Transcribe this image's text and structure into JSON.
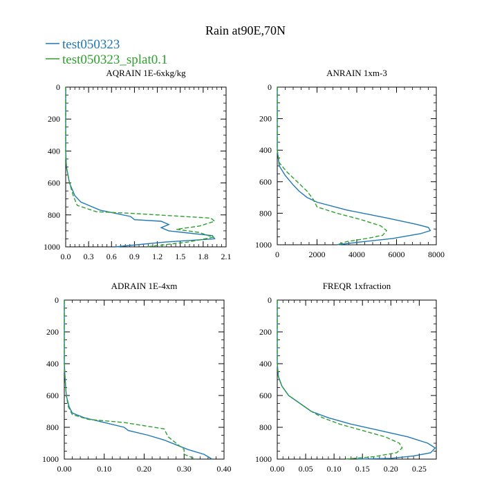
{
  "figure": {
    "title": "Rain at90E,70N",
    "legend": [
      {
        "label": "test050323",
        "color": "#1f77b4",
        "dash": "solid"
      },
      {
        "label": "test050323_splat0.1",
        "color": "#2ca02c",
        "dash": "dashed"
      }
    ]
  },
  "chart_data": [
    {
      "type": "line",
      "title": "AQRAIN  1E-6xkg/kg",
      "xlim": [
        0,
        2.1
      ],
      "ylim": [
        0,
        1000
      ],
      "yinvert": true,
      "xticks": [
        0.0,
        0.3,
        0.6,
        0.9,
        1.2,
        1.5,
        1.8,
        2.1
      ],
      "xtick_labels": [
        "0.0",
        "0.3",
        "0.6",
        "0.9",
        "1.2",
        "1.5",
        "1.8",
        "2.1"
      ],
      "yticks": [
        0,
        200,
        400,
        600,
        800,
        1000
      ],
      "ytick_labels": [
        "0",
        "200",
        "400",
        "600",
        "800",
        "1000"
      ],
      "series": [
        {
          "name": "test050323",
          "x": [
            0,
            0,
            0.01,
            0.05,
            0.12,
            0.2,
            0.45,
            0.85,
            0.9,
            1.25,
            1.35,
            1.25,
            1.35,
            1.92,
            1.95,
            1.3,
            0.65
          ],
          "y": [
            0,
            400,
            500,
            600,
            680,
            720,
            770,
            810,
            830,
            840,
            860,
            880,
            900,
            930,
            950,
            970,
            1000
          ]
        },
        {
          "name": "test050323_splat0.1",
          "x": [
            0,
            0,
            0.01,
            0.05,
            0.1,
            0.15,
            0.4,
            0.85,
            1.9,
            1.95,
            1.75,
            1.45,
            1.75,
            1.93,
            1.6,
            1.05
          ],
          "y": [
            0,
            400,
            500,
            600,
            680,
            740,
            780,
            790,
            820,
            840,
            870,
            890,
            910,
            940,
            970,
            1000
          ]
        }
      ]
    },
    {
      "type": "line",
      "title": "ANRAIN  1xm-3",
      "xlim": [
        0,
        8000
      ],
      "ylim": [
        0,
        1000
      ],
      "yinvert": true,
      "xticks": [
        0,
        2000,
        4000,
        6000,
        8000
      ],
      "xtick_labels": [
        "0",
        "2000",
        "4000",
        "6000",
        "8000"
      ],
      "yticks": [
        0,
        200,
        400,
        600,
        800,
        1000
      ],
      "ytick_labels": [
        "0",
        "200",
        "400",
        "600",
        "800",
        "1000"
      ],
      "series": [
        {
          "name": "test050323",
          "x": [
            0,
            0,
            100,
            400,
            800,
            1100,
            1500,
            2000,
            3500,
            5500,
            7000,
            7600,
            7700,
            7200,
            5800,
            4000,
            3000
          ],
          "y": [
            0,
            400,
            500,
            560,
            620,
            660,
            700,
            730,
            780,
            830,
            870,
            890,
            910,
            930,
            960,
            985,
            1000
          ]
        },
        {
          "name": "test050323_splat0.1",
          "x": [
            0,
            0,
            100,
            500,
            1000,
            1500,
            1800,
            2000,
            3000,
            4200,
            5200,
            5500,
            5300,
            4500,
            3500,
            3000
          ],
          "y": [
            0,
            400,
            480,
            540,
            600,
            660,
            710,
            760,
            800,
            840,
            880,
            910,
            940,
            960,
            980,
            1000
          ]
        }
      ]
    },
    {
      "type": "line",
      "title": "ADRAIN  1E-4xm",
      "xlim": [
        0,
        0.4
      ],
      "ylim": [
        0,
        1000
      ],
      "yinvert": true,
      "xticks": [
        0.0,
        0.1,
        0.2,
        0.3,
        0.4
      ],
      "xtick_labels": [
        "0.00",
        "0.10",
        "0.20",
        "0.30",
        "0.40"
      ],
      "yticks": [
        0,
        200,
        400,
        600,
        800,
        1000
      ],
      "ytick_labels": [
        "0",
        "200",
        "400",
        "600",
        "800",
        "1000"
      ],
      "series": [
        {
          "name": "test050323",
          "x": [
            0,
            0,
            0.002,
            0.005,
            0.012,
            0.02,
            0.05,
            0.1,
            0.15,
            0.16,
            0.21,
            0.25,
            0.28,
            0.31,
            0.35,
            0.37
          ],
          "y": [
            0,
            400,
            500,
            600,
            670,
            710,
            740,
            770,
            800,
            820,
            850,
            880,
            910,
            940,
            970,
            1000
          ]
        },
        {
          "name": "test050323_splat0.1",
          "x": [
            0,
            0,
            0.002,
            0.005,
            0.01,
            0.02,
            0.06,
            0.15,
            0.25,
            0.26,
            0.28,
            0.3,
            0.3,
            0.33
          ],
          "y": [
            0,
            400,
            500,
            600,
            670,
            720,
            750,
            770,
            810,
            860,
            900,
            940,
            970,
            1000
          ]
        }
      ]
    },
    {
      "type": "line",
      "title": "FREQR  1xfraction",
      "xlim": [
        0,
        0.28
      ],
      "ylim": [
        0,
        1000
      ],
      "yinvert": true,
      "xticks": [
        0.0,
        0.05,
        0.1,
        0.15,
        0.2,
        0.25
      ],
      "xtick_labels": [
        "0.00",
        "0.05",
        "0.10",
        "0.15",
        "0.20",
        "0.25"
      ],
      "yticks": [
        0,
        200,
        400,
        600,
        800,
        1000
      ],
      "ytick_labels": [
        "0",
        "200",
        "400",
        "600",
        "800",
        "1000"
      ],
      "series": [
        {
          "name": "test050323",
          "x": [
            0,
            0,
            0.002,
            0.008,
            0.02,
            0.04,
            0.06,
            0.09,
            0.13,
            0.18,
            0.23,
            0.265,
            0.278,
            0.27,
            0.24,
            0.2,
            0.14
          ],
          "y": [
            0,
            400,
            480,
            540,
            600,
            650,
            700,
            740,
            780,
            820,
            860,
            900,
            930,
            960,
            980,
            995,
            1000
          ]
        },
        {
          "name": "test050323_splat0.1",
          "x": [
            0,
            0,
            0.002,
            0.008,
            0.02,
            0.04,
            0.06,
            0.08,
            0.11,
            0.15,
            0.19,
            0.215,
            0.22,
            0.21,
            0.17,
            0.12
          ],
          "y": [
            0,
            400,
            480,
            540,
            600,
            650,
            700,
            740,
            780,
            820,
            860,
            900,
            930,
            960,
            985,
            1000
          ]
        }
      ]
    }
  ]
}
